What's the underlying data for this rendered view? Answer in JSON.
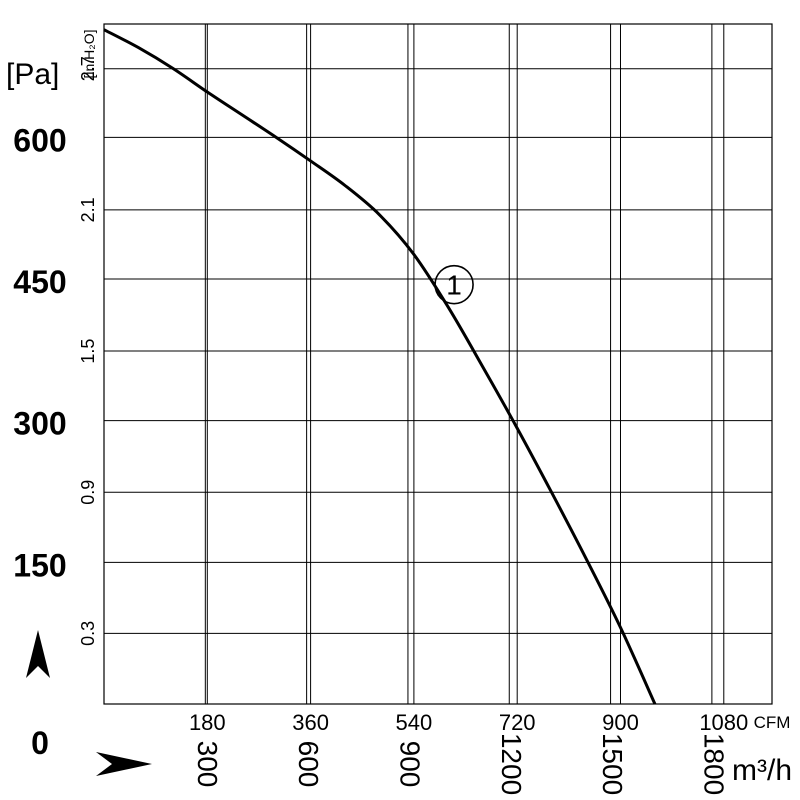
{
  "chart_data": {
    "type": "line",
    "axes": {
      "x_primary": {
        "unit": "CFM",
        "ticks": [
          180,
          360,
          540,
          720,
          900,
          1080
        ],
        "range": [
          0,
          1164
        ]
      },
      "x_secondary": {
        "unit": "m³/h",
        "ticks": [
          300,
          600,
          900,
          1200,
          1500,
          1800
        ],
        "range": [
          0,
          1978
        ]
      },
      "y_primary": {
        "unit": "[Pa]",
        "ticks": [
          0,
          150,
          300,
          450,
          600
        ],
        "range": [
          0,
          720
        ]
      },
      "y_secondary": {
        "unit": "[in.H₂O]",
        "ticks": [
          0.3,
          0.9,
          1.5,
          2.1,
          2.7
        ],
        "range": [
          0,
          2.89
        ]
      },
      "grid": true
    },
    "series": [
      {
        "name": "①",
        "x_unit": "CFM",
        "y_unit": "Pa",
        "points": [
          [
            0,
            714
          ],
          [
            60,
            695
          ],
          [
            120,
            673
          ],
          [
            180,
            648
          ],
          [
            240,
            624
          ],
          [
            300,
            600
          ],
          [
            360,
            575
          ],
          [
            420,
            549
          ],
          [
            480,
            518
          ],
          [
            540,
            476
          ],
          [
            600,
            420
          ],
          [
            660,
            357
          ],
          [
            720,
            292
          ],
          [
            780,
            224
          ],
          [
            840,
            154
          ],
          [
            900,
            81
          ],
          [
            960,
            0
          ]
        ]
      }
    ]
  }
}
